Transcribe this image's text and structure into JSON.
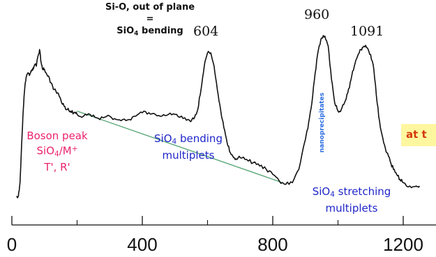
{
  "chart_data": {
    "type": "line",
    "title": "",
    "xlabel": "",
    "ylabel": "",
    "xlim": [
      0,
      1250
    ],
    "x_ticks": [
      0,
      400,
      800,
      1200
    ],
    "grid": false,
    "series": [
      {
        "x": [
          15,
          20,
          25,
          30,
          35,
          40,
          45,
          50,
          55,
          60,
          65,
          70,
          75,
          80,
          85,
          90,
          95,
          100,
          110,
          120,
          130,
          140,
          150,
          160,
          170,
          180,
          190,
          200,
          220,
          240,
          260,
          280,
          300,
          320,
          340,
          360,
          380,
          400,
          420,
          440,
          460,
          480,
          500,
          520,
          540,
          550,
          560,
          570,
          580,
          590,
          600,
          610,
          620,
          630,
          640,
          650,
          660,
          670,
          680,
          690,
          700,
          720,
          740,
          760,
          780,
          800,
          820,
          840,
          860,
          880,
          900,
          910,
          920,
          930,
          940,
          950,
          960,
          970,
          980,
          990,
          1000,
          1010,
          1020,
          1030,
          1040,
          1050,
          1060,
          1070,
          1080,
          1090,
          1100,
          1110,
          1120,
          1130,
          1140,
          1150,
          1160,
          1170,
          1180,
          1190,
          1200,
          1220,
          1240,
          1250
        ],
        "y": [
          0.04,
          0.04,
          0.12,
          0.35,
          0.56,
          0.7,
          0.76,
          0.78,
          0.77,
          0.79,
          0.81,
          0.83,
          0.82,
          0.88,
          0.92,
          0.84,
          0.8,
          0.8,
          0.76,
          0.72,
          0.68,
          0.66,
          0.62,
          0.58,
          0.56,
          0.55,
          0.54,
          0.53,
          0.52,
          0.53,
          0.51,
          0.51,
          0.52,
          0.5,
          0.5,
          0.5,
          0.52,
          0.54,
          0.54,
          0.53,
          0.52,
          0.53,
          0.53,
          0.52,
          0.5,
          0.49,
          0.51,
          0.56,
          0.68,
          0.82,
          0.9,
          0.9,
          0.82,
          0.68,
          0.56,
          0.45,
          0.36,
          0.3,
          0.27,
          0.26,
          0.27,
          0.26,
          0.24,
          0.22,
          0.2,
          0.17,
          0.13,
          0.11,
          0.12,
          0.2,
          0.38,
          0.48,
          0.6,
          0.78,
          0.92,
          0.99,
          1.0,
          0.94,
          0.74,
          0.6,
          0.55,
          0.56,
          0.6,
          0.66,
          0.74,
          0.82,
          0.88,
          0.92,
          0.94,
          0.93,
          0.89,
          0.8,
          0.6,
          0.45,
          0.36,
          0.3,
          0.25,
          0.2,
          0.17,
          0.14,
          0.12,
          0.1,
          0.1,
          0.1
        ]
      }
    ],
    "guide_line": {
      "x": [
        200,
        830
      ],
      "y": [
        0.55,
        0.12
      ],
      "color": "#5aa878"
    },
    "peak_labels": [
      {
        "x": 604,
        "text": "604"
      },
      {
        "x": 960,
        "text": "960"
      },
      {
        "x": 1091,
        "text": "1091"
      }
    ],
    "colors": {
      "curve": "#111111",
      "guide": "#5aa878",
      "boson": "#e8236e",
      "blue_text": "#1f26c8",
      "nano": "#2f6fe0",
      "orange_text": "#d43a0c",
      "orange_bg": "#fff7a0"
    }
  },
  "annotations": {
    "header": {
      "line1": "Si-O, out of plane",
      "line2": "=",
      "line3_pre": "SiO",
      "line3_sub": "4",
      "line3_post": " bending"
    },
    "boson": {
      "line1": "Boson peak",
      "line2_pre": "SiO",
      "line2_sub": "4",
      "line2_mid": "/M",
      "line2_sup": "+",
      "line3": "T', R'"
    },
    "bending": {
      "line1_pre": "SiO",
      "line1_sub": "4",
      "line1_post": " bending",
      "line2": "multiplets"
    },
    "stretching": {
      "line1_pre": "SiO",
      "line1_sub": "4",
      "line1_post": " stretching",
      "line2": "multiplets"
    },
    "nano": "nanoprecipitates",
    "cut_text": "at t"
  }
}
